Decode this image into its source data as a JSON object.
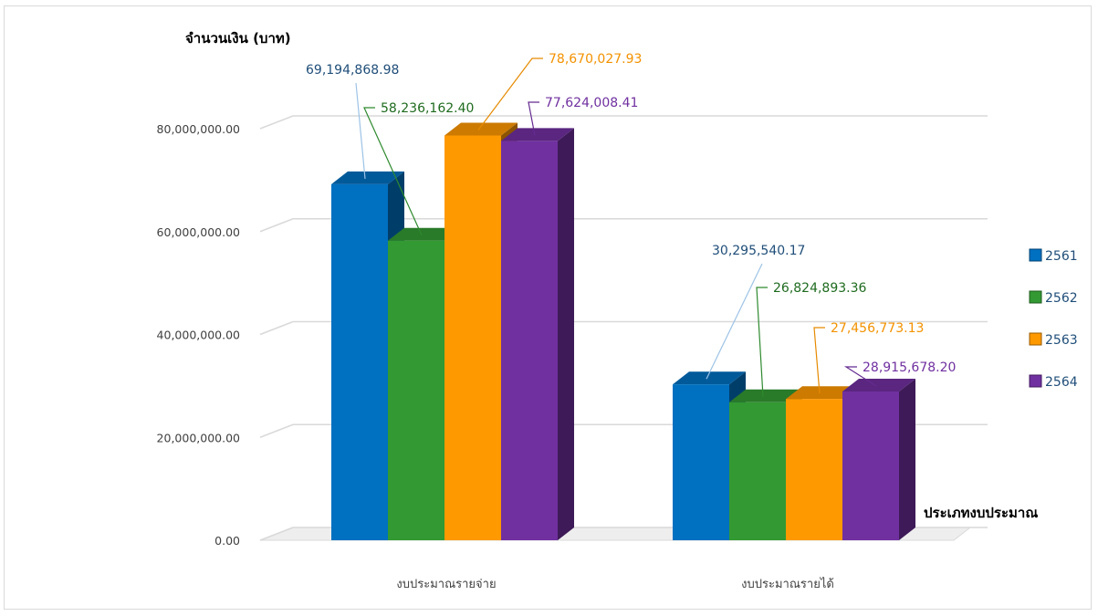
{
  "chart_data": {
    "type": "bar",
    "style": "3d-clustered-column",
    "ylabel": "จำนวนเงิน (บาท)",
    "xlabel": "ประเภทงบประมาณ",
    "categories": [
      "งบประมาณรายจ่าย",
      "งบประมาณรายได้"
    ],
    "series": [
      {
        "name": "2561",
        "color": "#0070c0",
        "values": [
          69194868.98,
          30295540.17
        ],
        "labels": [
          "69,194,868.98",
          "30,295,540.17"
        ],
        "label_color": "#1f4e79"
      },
      {
        "name": "2562",
        "color": "#339933",
        "values": [
          58236162.4,
          26824893.36
        ],
        "labels": [
          "58,236,162.40",
          "26,824,893.36"
        ],
        "label_color": "#1e6b1e"
      },
      {
        "name": "2563",
        "color": "#ff9900",
        "values": [
          78670027.93,
          27456773.13
        ],
        "labels": [
          "78,670,027.93",
          "27,456,773.13"
        ],
        "label_color": "#f39200"
      },
      {
        "name": "2564",
        "color": "#7030a0",
        "values": [
          77624008.41,
          28915678.2
        ],
        "labels": [
          "77,624,008.41",
          "28,915,678.20"
        ],
        "label_color": "#7030a0"
      }
    ],
    "ylim": [
      0,
      80000000
    ],
    "yticks": [
      0,
      20000000,
      40000000,
      60000000,
      80000000
    ],
    "ytick_labels": [
      "0.00",
      "20,000,000.00",
      "40,000,000.00",
      "60,000,000.00",
      "80,000,000.00"
    ],
    "grid": true,
    "legend_position": "right"
  }
}
